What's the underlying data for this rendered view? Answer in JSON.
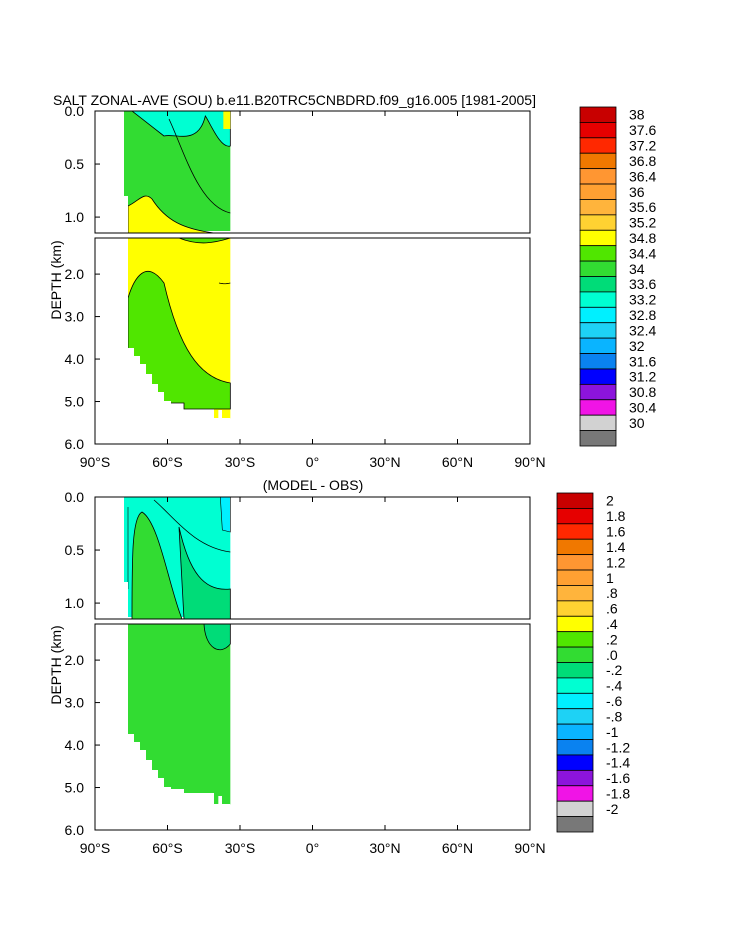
{
  "chart_data": [
    {
      "type": "contour",
      "title": "SALT ZONAL-AVE (SOU) b.e11.B20TRC5CNBDRD.f09_g16.005 [1981-2005]",
      "ylabel": "DEPTH (km)",
      "x_tick_labels": [
        "90°S",
        "60°S",
        "30°S",
        "0°",
        "30°N",
        "60°N",
        "90°N"
      ],
      "xlim": [
        -90,
        90
      ],
      "upper_panel": {
        "ylim": [
          0,
          1.15
        ],
        "y_tick_labels": [
          "0.0",
          "0.5",
          "1.0"
        ],
        "y_ticks": [
          0.0,
          0.5,
          1.0
        ]
      },
      "lower_panel": {
        "ylim": [
          1.15,
          6.0
        ],
        "y_tick_labels": [
          "2.0",
          "3.0",
          "4.0",
          "5.0",
          "6.0"
        ],
        "y_ticks": [
          2.0,
          3.0,
          4.0,
          5.0,
          6.0
        ]
      },
      "data_extent": {
        "lat_min": -78,
        "lat_max": -34,
        "depth_max": 5.4
      },
      "colorbar": {
        "labels": [
          "38",
          "37.6",
          "37.2",
          "36.8",
          "36.4",
          "36",
          "35.6",
          "35.2",
          "34.8",
          "34.4",
          "34",
          "33.6",
          "33.2",
          "32.8",
          "32.4",
          "32",
          "31.6",
          "31.2",
          "30.8",
          "30.4",
          "30"
        ],
        "colors": [
          "#c80000",
          "#e60000",
          "#ff2800",
          "#f07800",
          "#ff9632",
          "#ffa032",
          "#ffb43c",
          "#ffd232",
          "#ffff00",
          "#50e600",
          "#32dc32",
          "#00dc78",
          "#00ffd2",
          "#00f0ff",
          "#1ed2f5",
          "#0ab4ff",
          "#0a82f0",
          "#0000ff",
          "#8c14dc",
          "#f014e6",
          "#d2d2d2",
          "#787878"
        ]
      }
    },
    {
      "type": "contour",
      "title": "(MODEL - OBS)",
      "ylabel": "DEPTH (km)",
      "x_tick_labels": [
        "90°S",
        "60°S",
        "30°S",
        "0°",
        "30°N",
        "60°N",
        "90°N"
      ],
      "xlim": [
        -90,
        90
      ],
      "upper_panel": {
        "ylim": [
          0,
          1.15
        ],
        "y_tick_labels": [
          "0.0",
          "0.5",
          "1.0"
        ],
        "y_ticks": [
          0.0,
          0.5,
          1.0
        ]
      },
      "lower_panel": {
        "ylim": [
          1.15,
          6.0
        ],
        "y_tick_labels": [
          "2.0",
          "3.0",
          "4.0",
          "5.0",
          "6.0"
        ],
        "y_ticks": [
          2.0,
          3.0,
          4.0,
          5.0,
          6.0
        ]
      },
      "data_extent": {
        "lat_min": -78,
        "lat_max": -34,
        "depth_max": 5.4
      },
      "colorbar": {
        "labels": [
          "2",
          "1.8",
          "1.6",
          "1.4",
          "1.2",
          "1",
          ".8",
          ".6",
          ".4",
          ".2",
          ".0",
          "-.2",
          "-.4",
          "-.6",
          "-.8",
          "-1",
          "-1.2",
          "-1.4",
          "-1.6",
          "-1.8",
          "-2"
        ],
        "colors": [
          "#c80000",
          "#e60000",
          "#ff2800",
          "#f07800",
          "#ff9632",
          "#ffa032",
          "#ffb43c",
          "#ffd232",
          "#ffff00",
          "#50e600",
          "#32dc32",
          "#00dc78",
          "#00ffd2",
          "#00f0ff",
          "#1ed2f5",
          "#0ab4ff",
          "#0a82f0",
          "#0000ff",
          "#8c14dc",
          "#f014e6",
          "#d2d2d2",
          "#787878"
        ]
      }
    }
  ]
}
